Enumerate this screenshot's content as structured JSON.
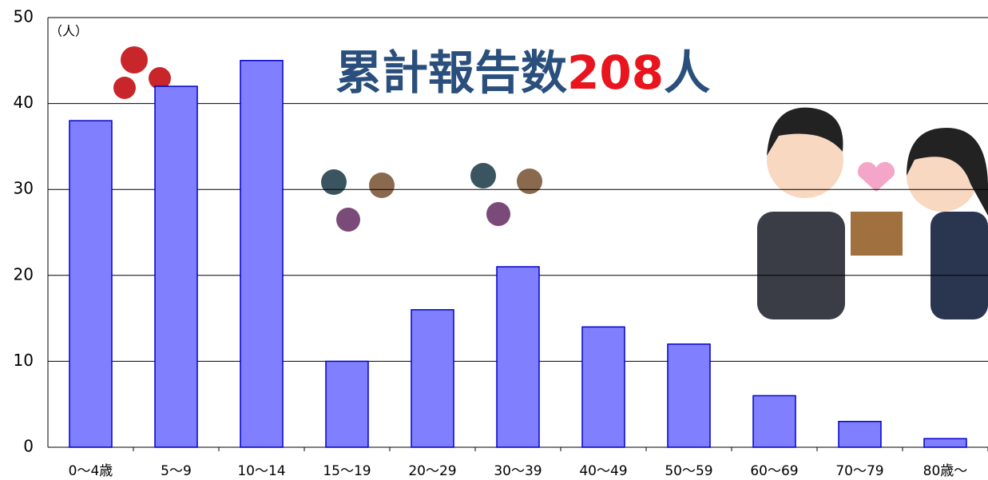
{
  "chart_data": {
    "type": "bar",
    "y_unit": "（人）",
    "headline": [
      "累計報告数",
      "208",
      "人"
    ],
    "categories": [
      "0〜4歳",
      "5〜9",
      "10〜14",
      "15〜19",
      "20〜29",
      "30〜39",
      "40〜49",
      "50〜59",
      "60〜69",
      "70〜79",
      "80歳〜"
    ],
    "values": [
      38,
      42,
      45,
      10,
      16,
      21,
      14,
      12,
      6,
      3,
      1
    ],
    "color": "#8080ff",
    "stroke": "#0000cc",
    "ylim": [
      0,
      50
    ],
    "yticks": [
      0,
      10,
      20,
      30,
      40,
      50
    ],
    "grid": true
  }
}
